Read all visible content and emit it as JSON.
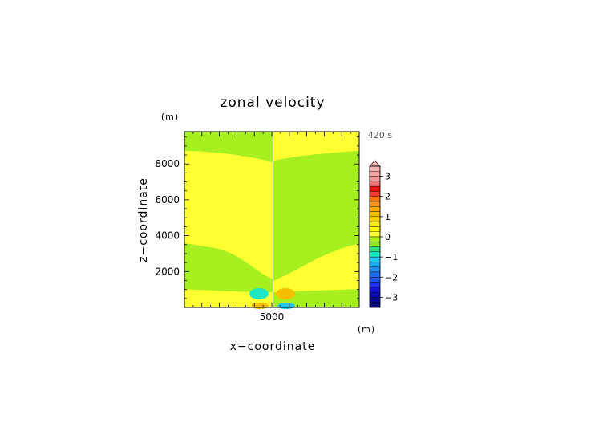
{
  "chart_data": {
    "type": "heatmap",
    "title": "zonal velocity",
    "xlabel": "x−coordinate",
    "ylabel": "z−coordinate",
    "x_unit": "(m)",
    "y_unit": "(m)",
    "time_label": "420 s",
    "x_ticks": [
      {
        "value": 5000,
        "label": "5000"
      }
    ],
    "y_ticks": [
      {
        "value": 2000,
        "label": "2000"
      },
      {
        "value": 4000,
        "label": "4000"
      },
      {
        "value": 6000,
        "label": "6000"
      },
      {
        "value": 8000,
        "label": "8000"
      }
    ],
    "xlim": [
      0,
      10000
    ],
    "ylim": [
      0,
      9800
    ],
    "colorbar": {
      "range": [
        -3.5,
        3.5
      ],
      "step": 0.25,
      "ticks": [
        {
          "value": 3,
          "label": "3"
        },
        {
          "value": 2,
          "label": "2"
        },
        {
          "value": 1,
          "label": "1"
        },
        {
          "value": 0,
          "label": "0"
        },
        {
          "value": -1,
          "label": "−1"
        },
        {
          "value": -2,
          "label": "−2"
        },
        {
          "value": -3,
          "label": "−3"
        }
      ],
      "levels": [
        {
          "lo": 3.25,
          "hi": 3.5,
          "color": "#f5b4b4"
        },
        {
          "lo": 3.0,
          "hi": 3.25,
          "color": "#f5a5a5"
        },
        {
          "lo": 2.75,
          "hi": 3.0,
          "color": "#f09595"
        },
        {
          "lo": 2.5,
          "hi": 2.75,
          "color": "#f07878"
        },
        {
          "lo": 2.25,
          "hi": 2.5,
          "color": "#ee0a0a"
        },
        {
          "lo": 2.0,
          "hi": 2.25,
          "color": "#f03c28"
        },
        {
          "lo": 1.75,
          "hi": 2.0,
          "color": "#f57814"
        },
        {
          "lo": 1.5,
          "hi": 1.75,
          "color": "#f59628"
        },
        {
          "lo": 1.25,
          "hi": 1.5,
          "color": "#f5aa00"
        },
        {
          "lo": 1.0,
          "hi": 1.25,
          "color": "#f5be00"
        },
        {
          "lo": 0.75,
          "hi": 1.0,
          "color": "#f5d200"
        },
        {
          "lo": 0.5,
          "hi": 0.75,
          "color": "#faeb14"
        },
        {
          "lo": 0.25,
          "hi": 0.5,
          "color": "#fffa00"
        },
        {
          "lo": 0.0,
          "hi": 0.25,
          "color": "#ffff32"
        },
        {
          "lo": -0.25,
          "hi": 0.0,
          "color": "#a5f01e"
        },
        {
          "lo": -0.5,
          "hi": -0.25,
          "color": "#8ce61e"
        },
        {
          "lo": -0.75,
          "hi": -0.5,
          "color": "#28e68c"
        },
        {
          "lo": -1.0,
          "hi": -0.75,
          "color": "#1ee6c3"
        },
        {
          "lo": -1.25,
          "hi": -1.0,
          "color": "#1ec8f0"
        },
        {
          "lo": -1.5,
          "hi": -1.25,
          "color": "#1eaaf0"
        },
        {
          "lo": -1.75,
          "hi": -1.5,
          "color": "#1e8cf0"
        },
        {
          "lo": -2.0,
          "hi": -1.75,
          "color": "#1e6ef0"
        },
        {
          "lo": -2.25,
          "hi": -2.0,
          "color": "#1e50f0"
        },
        {
          "lo": -2.5,
          "hi": -2.25,
          "color": "#1e32f0"
        },
        {
          "lo": -2.75,
          "hi": -2.5,
          "color": "#1414d2"
        },
        {
          "lo": -3.0,
          "hi": -2.75,
          "color": "#0a0ab4"
        },
        {
          "lo": -3.25,
          "hi": -3.0,
          "color": "#0a0a96"
        },
        {
          "lo": -3.5,
          "hi": -3.25,
          "color": "#0a0a78"
        }
      ],
      "extend": "max"
    },
    "field_colors": {
      "positive_background": "#ffff32",
      "negative_background": "#a5f01e",
      "positive_core": "#f5be00",
      "negative_core": "#1ee6c3"
    }
  }
}
